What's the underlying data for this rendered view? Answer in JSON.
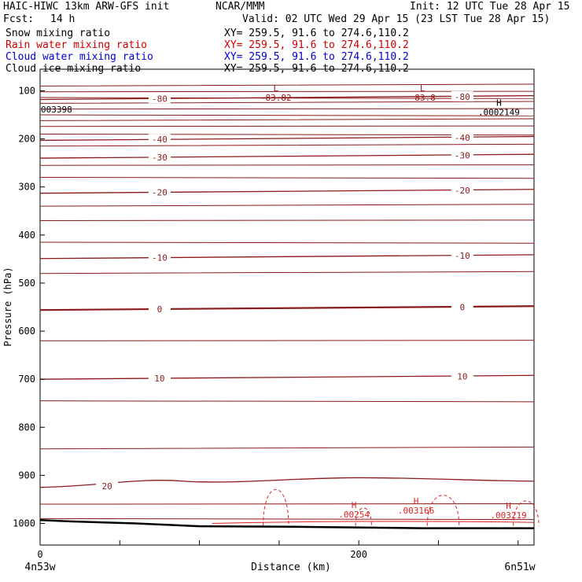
{
  "header": {
    "model": "HAIC-HIWC 13km ARW-GFS init",
    "org": "NCAR/MMM",
    "init": "Init: 12 UTC Tue 28 Apr 15",
    "fcst_label": "Fcst:",
    "fcst_value": "14 h",
    "valid": "Valid: 02 UTC Wed 29 Apr 15 (23 LST Tue 28 Apr 15)"
  },
  "fields": [
    {
      "name": "Snow mixing ratio",
      "xy": "XY= 259.5, 91.6 to 274.6,110.2",
      "color": "#000000"
    },
    {
      "name": "Rain water mixing ratio",
      "xy": "XY= 259.5, 91.6 to 274.6,110.2",
      "color": "#cc0000"
    },
    {
      "name": "Cloud water mixing ratio",
      "xy": "XY= 259.5, 91.6 to 274.6,110.2",
      "color": "#0000cc"
    },
    {
      "name": "Cloud ice mixing ratio",
      "xy": "XY= 259.5, 91.6 to 274.6,110.2",
      "color": "#000000"
    }
  ],
  "chart_data": {
    "type": "line",
    "xlabel": "Distance (km)",
    "ylabel": "Pressure (hPa)",
    "xlim": [
      0,
      310
    ],
    "ylim": [
      1045,
      55
    ],
    "x_ticks": [
      0,
      200
    ],
    "y_ticks": [
      100,
      200,
      300,
      400,
      500,
      600,
      700,
      800,
      900,
      1000
    ],
    "x_endpoints": [
      "4n53w",
      "6n51w"
    ],
    "temperature_contours": [
      {
        "label": "-80",
        "pressure": 115
      },
      {
        "label": "-40",
        "pressure": 200
      },
      {
        "label": "-30",
        "pressure": 237
      },
      {
        "label": "-20",
        "pressure": 310
      },
      {
        "label": "-10",
        "pressure": 446
      },
      {
        "label": "0",
        "pressure": 553
      },
      {
        "label": "10",
        "pressure": 697
      },
      {
        "label": "20",
        "pressure": 919
      }
    ],
    "extrema": [
      {
        "kind": "L",
        "value": "-83.82",
        "x": 148
      },
      {
        "kind": "L",
        "value": "-83.8",
        "x": 240
      },
      {
        "kind": "H",
        "value": ".0002149",
        "x": 288
      },
      {
        "kind": "H",
        "value": ".00254",
        "x": 197
      },
      {
        "kind": "H",
        "value": ".003166",
        "x": 236
      },
      {
        "kind": "H",
        "value": ".003219",
        "x": 294
      }
    ],
    "edge_value": "003398",
    "colors": {
      "temperature": "#8b1a1a",
      "rain": "#dd2222",
      "terrain": "#000000"
    }
  }
}
